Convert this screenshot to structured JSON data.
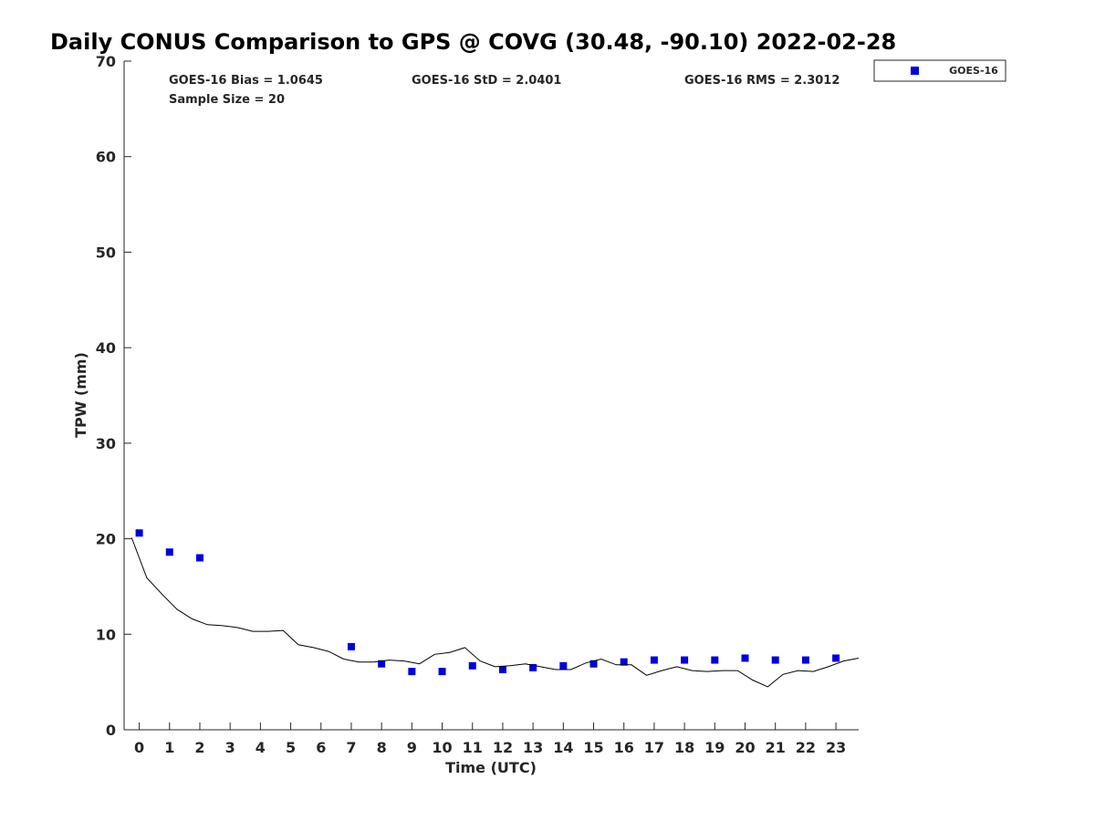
{
  "chart_data": {
    "type": "scatter",
    "title": "Daily CONUS Comparison to GPS @ COVG (30.48, -90.10) 2022-02-28",
    "xlabel": "Time (UTC)",
    "ylabel": "TPW (mm)",
    "xlim": [
      -0.5,
      23.75
    ],
    "ylim": [
      0,
      70
    ],
    "x_ticks": [
      0,
      1,
      2,
      3,
      4,
      5,
      6,
      7,
      8,
      9,
      10,
      11,
      12,
      13,
      14,
      15,
      16,
      17,
      18,
      19,
      20,
      21,
      22,
      23
    ],
    "y_ticks": [
      0,
      10,
      20,
      30,
      40,
      50,
      60,
      70
    ],
    "grid": false,
    "legend_position": "top-right, outside plot",
    "stats": {
      "bias": "GOES-16 Bias = 1.0645",
      "std": "GOES-16 StD = 2.0401",
      "rms": "GOES-16 RMS = 2.3012",
      "sample": "Sample Size = 20"
    },
    "series": [
      {
        "name": "GOES-16",
        "kind": "markers",
        "marker": "square",
        "color": "#0000dd",
        "x": [
          0,
          1,
          2,
          7,
          8,
          9,
          10,
          11,
          12,
          13,
          14,
          15,
          16,
          17,
          18,
          19,
          20,
          21,
          22,
          23
        ],
        "y": [
          20.6,
          18.6,
          18.0,
          8.7,
          6.9,
          6.1,
          6.1,
          6.7,
          6.3,
          6.5,
          6.7,
          6.9,
          7.1,
          7.3,
          7.3,
          7.3,
          7.5,
          7.3,
          7.3,
          7.5
        ]
      },
      {
        "kind": "line",
        "color": "#000000",
        "x": [
          -0.25,
          0.25,
          0.75,
          1.25,
          1.75,
          2.25,
          2.75,
          3.25,
          3.75,
          4.25,
          4.75,
          5.25,
          5.75,
          6.25,
          6.75,
          7.25,
          7.75,
          8.25,
          8.75,
          9.25,
          9.75,
          10.25,
          10.75,
          11.25,
          11.75,
          12.25,
          12.75,
          13.25,
          13.75,
          14.25,
          14.75,
          15.25,
          15.75,
          16.25,
          16.75,
          17.25,
          17.75,
          18.25,
          18.75,
          19.25,
          19.75,
          20.25,
          20.75,
          21.25,
          21.75,
          22.25,
          22.75,
          23.25,
          23.75
        ],
        "y": [
          20.1,
          15.9,
          14.2,
          12.6,
          11.6,
          11.0,
          10.9,
          10.7,
          10.3,
          10.3,
          10.4,
          8.9,
          8.6,
          8.2,
          7.4,
          7.1,
          7.1,
          7.3,
          7.2,
          6.9,
          7.9,
          8.1,
          8.6,
          7.2,
          6.6,
          6.7,
          6.9,
          6.6,
          6.3,
          6.3,
          7.0,
          7.4,
          6.8,
          6.8,
          5.7,
          6.2,
          6.6,
          6.2,
          6.1,
          6.2,
          6.2,
          5.2,
          4.5,
          5.8,
          6.2,
          6.1,
          6.6,
          7.2,
          7.5
        ]
      }
    ]
  }
}
